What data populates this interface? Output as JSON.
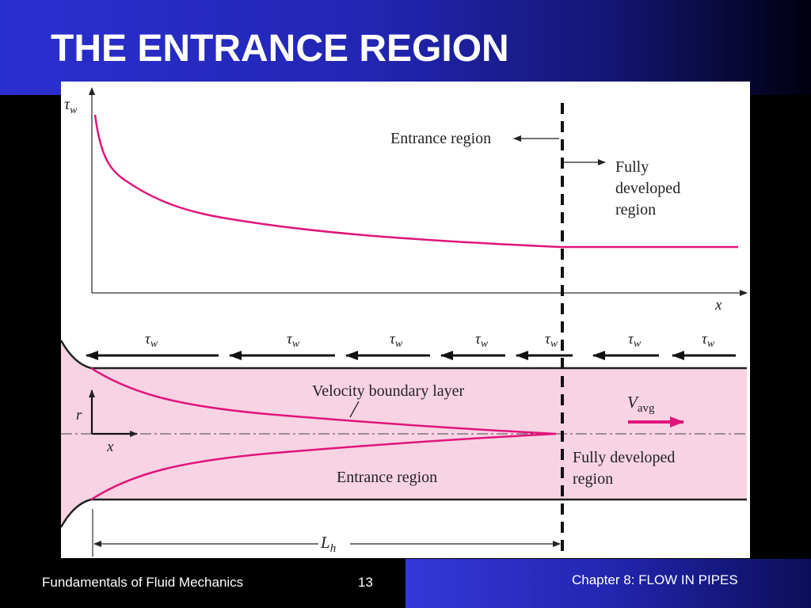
{
  "slide": {
    "title": "THE ENTRANCE REGION"
  },
  "colors": {
    "header_blue": "#2a2fd0",
    "curve_magenta": "#e0157a",
    "pipe_fill_pink": "#f8d3e3",
    "footer_black": "#000000",
    "footer_blue": "#2226b0"
  },
  "figure": {
    "top_plot": {
      "y_axis_symbol": "τ",
      "y_axis_subscript": "w",
      "x_axis_label": "x",
      "entrance_label": "Entrance region",
      "fully_developed_label": [
        "Fully",
        "developed",
        "region"
      ]
    },
    "pipe": {
      "tau_symbol": "τ",
      "tau_subscript": "w",
      "boundary_layer_label": "Velocity boundary layer",
      "entrance_label": "Entrance region",
      "fully_developed_label": [
        "Fully developed",
        "region"
      ],
      "velocity_symbol": "V",
      "velocity_subscript": "avg",
      "r_label": "r",
      "x_label": "x",
      "length_symbol": "L",
      "length_subscript": "h"
    }
  },
  "footer": {
    "course": "Fundamentals of Fluid Mechanics",
    "page": "13",
    "chapter": "Chapter 8:  FLOW IN PIPES"
  }
}
